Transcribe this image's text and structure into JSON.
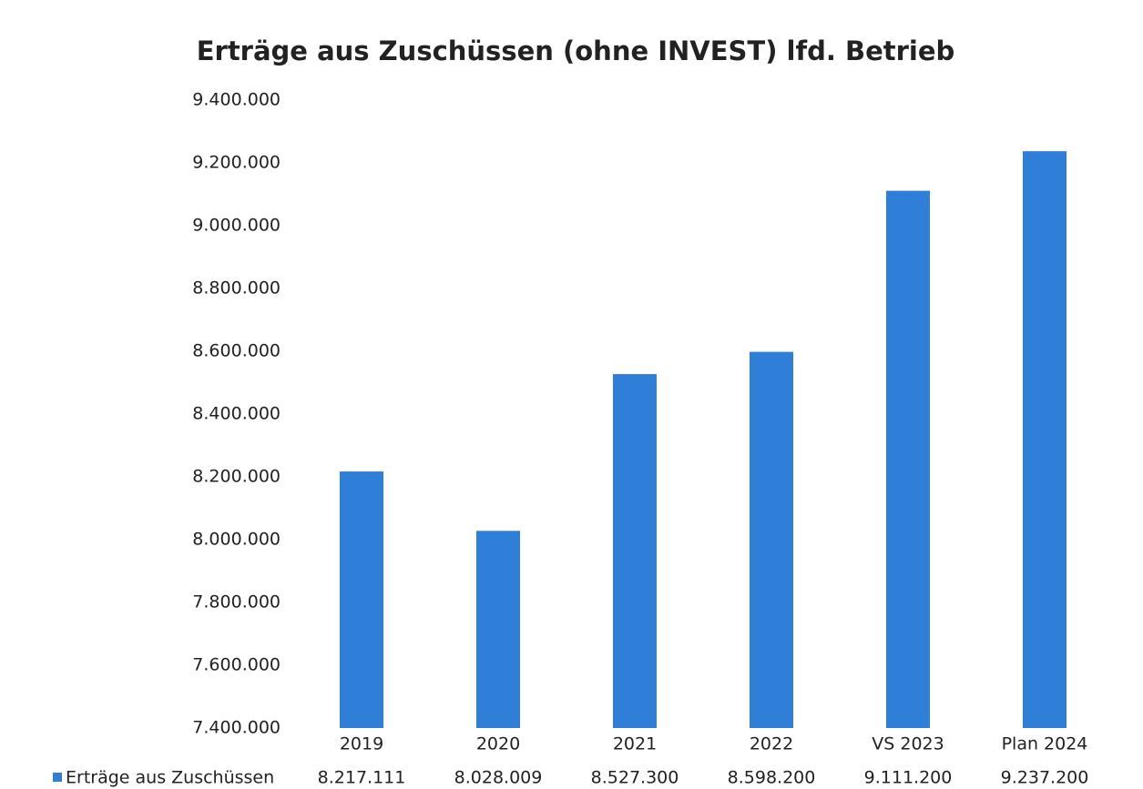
{
  "chart_data": {
    "type": "bar",
    "title": "Erträge aus Zuschüssen (ohne INVEST) lfd. Betrieb",
    "categories": [
      "2019",
      "2020",
      "2021",
      "2022",
      "VS 2023",
      "Plan 2024"
    ],
    "series": [
      {
        "name": "Erträge aus Zuschüssen",
        "color": "#2f7ed8",
        "values": [
          8217111,
          8028009,
          8527300,
          8598200,
          9111200,
          9237200
        ],
        "value_labels": [
          "8.217.111",
          "8.028.009",
          "8.527.300",
          "8.598.200",
          "9.111.200",
          "9.237.200"
        ]
      }
    ],
    "ylim": [
      7400000,
      9400000
    ],
    "yticks": [
      {
        "value": 7400000,
        "label": "7.400.000"
      },
      {
        "value": 7600000,
        "label": "7.600.000"
      },
      {
        "value": 7800000,
        "label": "7.800.000"
      },
      {
        "value": 8000000,
        "label": "8.000.000"
      },
      {
        "value": 8200000,
        "label": "8.200.000"
      },
      {
        "value": 8400000,
        "label": "8.400.000"
      },
      {
        "value": 8600000,
        "label": "8.600.000"
      },
      {
        "value": 8800000,
        "label": "8.800.000"
      },
      {
        "value": 9000000,
        "label": "9.000.000"
      },
      {
        "value": 9200000,
        "label": "9.200.000"
      },
      {
        "value": 9400000,
        "label": "9.400.000"
      }
    ],
    "grid": false,
    "legend": "bottom-left"
  }
}
